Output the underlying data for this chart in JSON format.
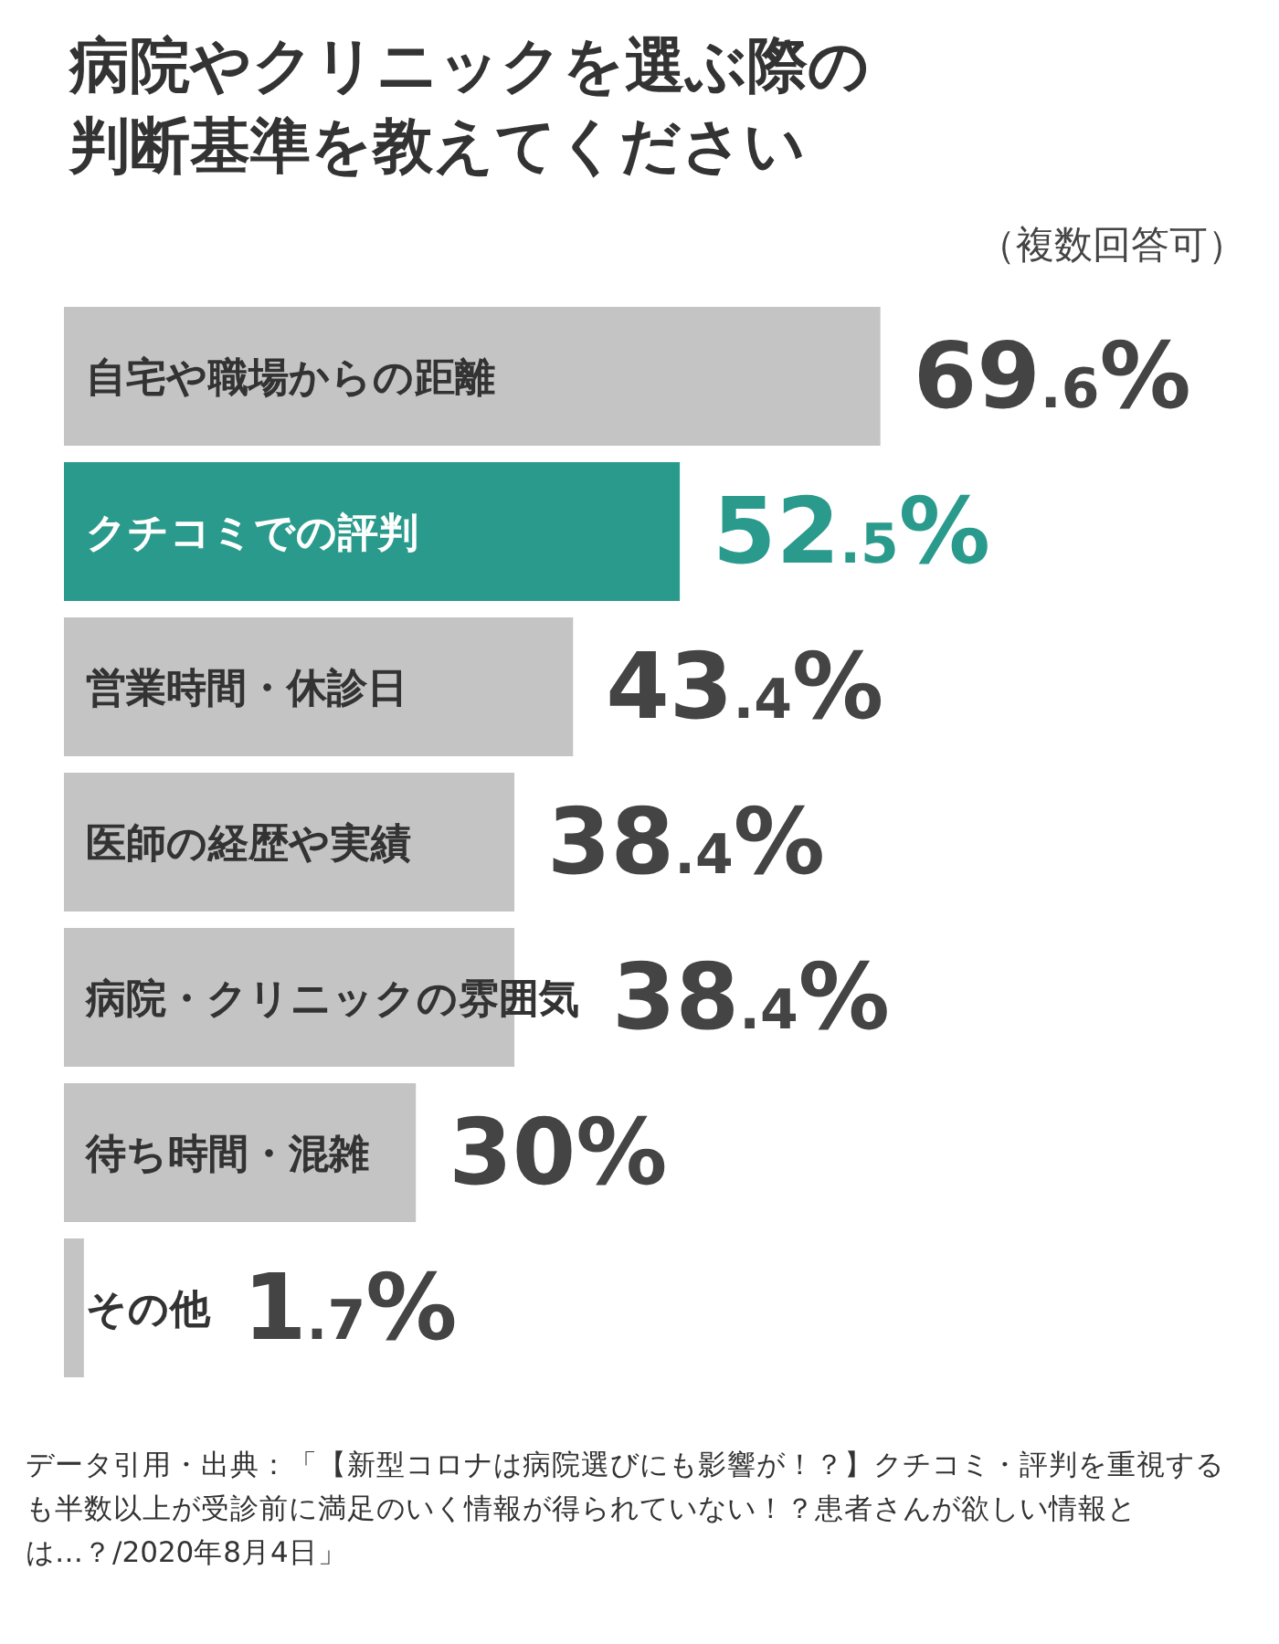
{
  "chart_data": {
    "type": "bar",
    "orientation": "horizontal",
    "title": "病院やクリニックを選ぶ際の判断基準を教えてください",
    "subtitle": "（複数回答可）",
    "categories": [
      "自宅や職場からの距離",
      "クチコミでの評判",
      "営業時間・休診日",
      "医師の経歴や実績",
      "病院・クリニックの雰囲気",
      "待ち時間・混雑",
      "その他"
    ],
    "values": [
      69.6,
      52.5,
      43.4,
      38.4,
      38.4,
      30,
      1.7
    ],
    "colors": [
      "#c4c4c4",
      "#2a9a8c",
      "#c4c4c4",
      "#c4c4c4",
      "#c4c4c4",
      "#c4c4c4",
      "#c4c4c4"
    ],
    "value_labels": [
      "69.6%",
      "52.5%",
      "43.4%",
      "38.4%",
      "38.4%",
      "30%",
      "1.7%"
    ],
    "annotations": [
      "データ引用・出典：「【新型コロナは病院選びにも影響が！？】クチコミ・評判を重視するも半数以上が受診前に満足のいく情報が得られていない！？患者さんが欲しい情報とは…？/2020年8月4日」"
    ]
  }
}
